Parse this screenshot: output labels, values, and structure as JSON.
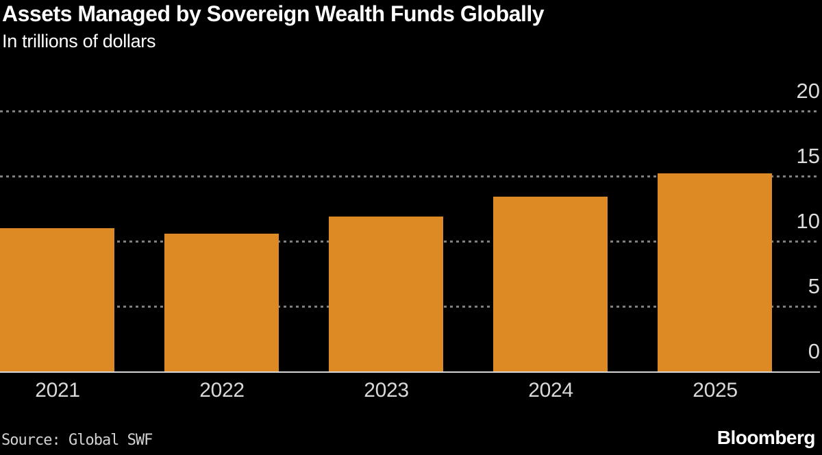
{
  "header": {
    "title": "Assets Managed by Sovereign Wealth Funds Globally",
    "subtitle": "In trillions of dollars"
  },
  "chart_data": {
    "type": "bar",
    "title": "Assets Managed by Sovereign Wealth Funds Globally",
    "subtitle": "In trillions of dollars",
    "categories": [
      "2021",
      "2022",
      "2023",
      "2024",
      "2025"
    ],
    "values": [
      11.0,
      10.6,
      11.9,
      13.4,
      15.2
    ],
    "xlabel": "",
    "ylabel": "trillions of dollars",
    "ylim": [
      0,
      20
    ],
    "yticks": [
      0,
      5,
      10,
      15,
      20
    ],
    "axis_side": "right",
    "grid": "dashed-horizontal",
    "legend": "none",
    "source": "Global SWF"
  },
  "footer": {
    "source": "Source: Global SWF",
    "brand": "Bloomberg"
  },
  "colors": {
    "background": "#000000",
    "bar": "#DD8A24",
    "gridline": "#7F7F7F",
    "baseline": "#D6D6D6",
    "tick_text": "#DCDCDC",
    "title_text": "#FFFFFF",
    "source_text": "#D2D2D2"
  }
}
